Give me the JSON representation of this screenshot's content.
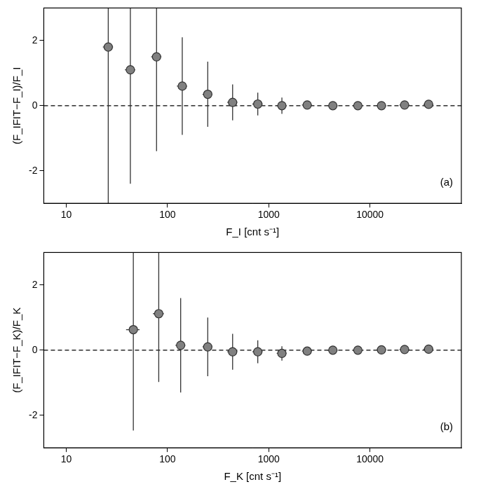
{
  "chart_data": [
    {
      "type": "scatter",
      "annotation": "(a)",
      "x_label": "F_I [cnt s⁻¹]",
      "y_label": "(F_IFIT−F_I)/F_I",
      "log": "x",
      "grid": false,
      "marker": "circle",
      "color": "#808080",
      "xlim": [
        6,
        80000
      ],
      "xticks": [
        10,
        100,
        1000,
        10000
      ],
      "ylim": [
        -3,
        3
      ],
      "yticks": [
        -2,
        0,
        2
      ],
      "hline": 0,
      "x": [
        26,
        43,
        78,
        140,
        250,
        440,
        780,
        1350,
        2400,
        4300,
        7600,
        13000,
        22000,
        38000
      ],
      "values": [
        1.8,
        1.1,
        1.5,
        0.6,
        0.35,
        0.1,
        0.05,
        0.0,
        0.02,
        0.0,
        0.0,
        0.0,
        0.02,
        0.04
      ],
      "xerr": [
        3,
        5,
        9,
        16,
        28,
        50,
        90,
        150,
        270,
        480,
        850,
        1400,
        2400,
        4200
      ],
      "yerr": [
        5,
        3.5,
        2.9,
        1.5,
        1.0,
        0.55,
        0.35,
        0.25,
        0.12,
        0.06,
        0.05,
        0.04,
        0.03,
        0.03
      ]
    },
    {
      "type": "scatter",
      "annotation": "(b)",
      "x_label": "F_K [cnt s⁻¹]",
      "y_label": "(F_IFIT−F_K)/F_K",
      "log": "x",
      "grid": false,
      "marker": "circle",
      "color": "#808080",
      "xlim": [
        6,
        80000
      ],
      "xticks": [
        10,
        100,
        1000,
        10000
      ],
      "ylim": [
        -3,
        3
      ],
      "yticks": [
        -2,
        0,
        2
      ],
      "hline": 0,
      "x": [
        46,
        82,
        135,
        250,
        440,
        780,
        1350,
        2400,
        4300,
        7600,
        13000,
        22000,
        38000
      ],
      "values": [
        0.63,
        1.12,
        0.15,
        0.1,
        -0.05,
        -0.05,
        -0.1,
        -0.03,
        0.0,
        0.0,
        0.01,
        0.02,
        0.03
      ],
      "xerr": [
        7,
        10,
        15,
        28,
        50,
        90,
        150,
        270,
        480,
        850,
        1400,
        2400,
        4200
      ],
      "yerr": [
        3.1,
        2.1,
        1.45,
        0.9,
        0.55,
        0.35,
        0.22,
        0.12,
        0.06,
        0.05,
        0.04,
        0.03,
        0.03
      ]
    }
  ]
}
